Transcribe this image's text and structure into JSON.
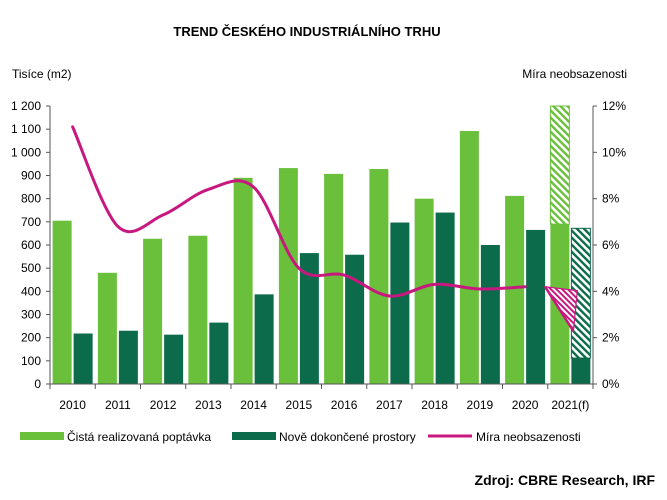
{
  "chart_data": {
    "type": "bar",
    "title": "TREND ČESKÉHO INDUSTRIÁLNÍHO TRHU",
    "ylabel_left": "Tisíce (m2)",
    "ylabel_right": "Míra neobsazenosti",
    "source": "Zdroj: CBRE Research, IRF",
    "categories": [
      "2010",
      "2011",
      "2012",
      "2013",
      "2014",
      "2015",
      "2016",
      "2017",
      "2018",
      "2019",
      "2020",
      "2021(f)"
    ],
    "y_left": {
      "min": 0,
      "max": 1200,
      "step": 100,
      "tick_labels": [
        "0",
        "100",
        "200",
        "300",
        "400",
        "500",
        "600",
        "700",
        "800",
        "900",
        "1 000",
        "1 100",
        "1 200"
      ]
    },
    "y_right": {
      "min": 0,
      "max": 12,
      "step": 2,
      "tick_labels": [
        "0%",
        "2%",
        "4%",
        "6%",
        "8%",
        "10%",
        "12%"
      ]
    },
    "series": [
      {
        "name": "Čistá realizovaná poptávka",
        "kind": "bar",
        "color": "#6abf3b",
        "values": [
          705,
          480,
          627,
          640,
          890,
          932,
          907,
          928,
          800,
          1092,
          812,
          690
        ],
        "forecast_range": [
          690,
          1200
        ]
      },
      {
        "name": "Nově dokončené prostory",
        "kind": "bar",
        "color": "#0b6b4a",
        "values": [
          218,
          230,
          213,
          265,
          387,
          565,
          558,
          697,
          740,
          600,
          665,
          112
        ],
        "forecast_range": [
          112,
          672
        ]
      },
      {
        "name": "Míra neobsazenosti",
        "kind": "line",
        "axis": "right",
        "color": "#c8187f",
        "values": [
          11.1,
          6.8,
          7.3,
          8.4,
          8.5,
          5.0,
          4.7,
          3.8,
          4.3,
          4.1,
          4.2,
          null
        ],
        "forecast_from": 4.2,
        "forecast_to": 2.2
      }
    ],
    "legend": "bottom",
    "grid": false
  }
}
